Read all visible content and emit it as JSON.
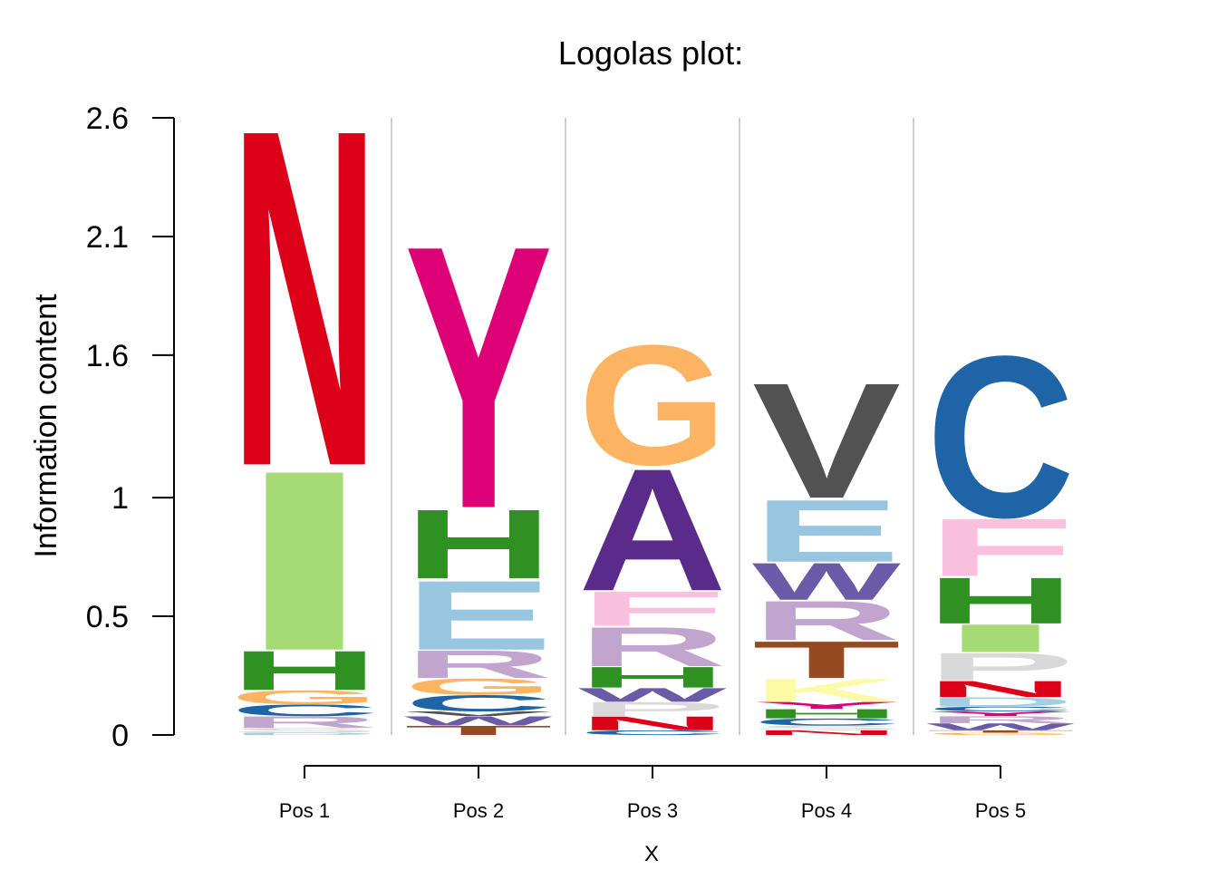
{
  "chart_data": {
    "type": "sequence-logo",
    "title": "Logolas plot:",
    "ylabel": "Information content",
    "xlabel": "X",
    "ylim": [
      0,
      2.6
    ],
    "yticks": [
      {
        "value": 0,
        "label": "0"
      },
      {
        "value": 0.5,
        "label": "0.5"
      },
      {
        "value": 1,
        "label": "1"
      },
      {
        "value": 1.6,
        "label": "1.6"
      },
      {
        "value": 2.1,
        "label": "2.1"
      },
      {
        "value": 2.6,
        "label": "2.6"
      }
    ],
    "positions": [
      {
        "label": "Pos 1",
        "letters": [
          {
            "letter": "D",
            "height": 0.01,
            "color": "#a6cee3"
          },
          {
            "letter": "S",
            "height": 0.02,
            "color": "#d9d9d9"
          },
          {
            "letter": "R",
            "height": 0.05,
            "color": "#c2a5cf"
          },
          {
            "letter": "C",
            "height": 0.05,
            "color": "#1f64a6"
          },
          {
            "letter": "G",
            "height": 0.06,
            "color": "#fdb462"
          },
          {
            "letter": "H",
            "height": 0.17,
            "color": "#2e9121"
          },
          {
            "letter": "I",
            "height": 0.78,
            "color": "#a6da75"
          },
          {
            "letter": "N",
            "height": 1.46,
            "color": "#dc0018"
          }
        ]
      },
      {
        "label": "Pos 2",
        "letters": [
          {
            "letter": "T",
            "height": 0.04,
            "color": "#964a22"
          },
          {
            "letter": "W",
            "height": 0.04,
            "color": "#6a5aa8"
          },
          {
            "letter": "V",
            "height": 0.02,
            "color": "#525252"
          },
          {
            "letter": "C",
            "height": 0.07,
            "color": "#1f64a6"
          },
          {
            "letter": "G",
            "height": 0.07,
            "color": "#fdb462"
          },
          {
            "letter": "R",
            "height": 0.12,
            "color": "#c2a5cf"
          },
          {
            "letter": "E",
            "height": 0.3,
            "color": "#98c5df"
          },
          {
            "letter": "H",
            "height": 0.3,
            "color": "#2e9121"
          },
          {
            "letter": "Y",
            "height": 1.14,
            "color": "#dd0076"
          }
        ]
      },
      {
        "label": "Pos 3",
        "letters": [
          {
            "letter": "C",
            "height": 0.02,
            "color": "#1f64a6"
          },
          {
            "letter": "N",
            "height": 0.06,
            "color": "#dc0018"
          },
          {
            "letter": "P",
            "height": 0.06,
            "color": "#d9d9d9"
          },
          {
            "letter": "W",
            "height": 0.06,
            "color": "#6a5aa8"
          },
          {
            "letter": "H",
            "height": 0.09,
            "color": "#2e9121"
          },
          {
            "letter": "R",
            "height": 0.17,
            "color": "#c2a5cf"
          },
          {
            "letter": "F",
            "height": 0.15,
            "color": "#f9c0de"
          },
          {
            "letter": "A",
            "height": 0.53,
            "color": "#5b2b8c"
          },
          {
            "letter": "G",
            "height": 0.52,
            "color": "#fdb462"
          }
        ]
      },
      {
        "label": "Pos 4",
        "letters": [
          {
            "letter": "N",
            "height": 0.02,
            "color": "#dc0018"
          },
          {
            "letter": "S",
            "height": 0.02,
            "color": "#d9d9d9"
          },
          {
            "letter": "C",
            "height": 0.03,
            "color": "#1f64a6"
          },
          {
            "letter": "H",
            "height": 0.04,
            "color": "#2e9121"
          },
          {
            "letter": "Y",
            "height": 0.03,
            "color": "#dd0076"
          },
          {
            "letter": "K",
            "height": 0.1,
            "color": "#fdfaa5"
          },
          {
            "letter": "T",
            "height": 0.16,
            "color": "#964a22"
          },
          {
            "letter": "R",
            "height": 0.17,
            "color": "#c2a5cf"
          },
          {
            "letter": "W",
            "height": 0.16,
            "color": "#6a5aa8"
          },
          {
            "letter": "E",
            "height": 0.27,
            "color": "#98c5df"
          },
          {
            "letter": "V",
            "height": 0.5,
            "color": "#525252"
          }
        ]
      },
      {
        "label": "Pos 5",
        "letters": [
          {
            "letter": "G",
            "height": 0.01,
            "color": "#fdb462"
          },
          {
            "letter": "T",
            "height": 0.01,
            "color": "#964a22"
          },
          {
            "letter": "W",
            "height": 0.03,
            "color": "#6a5aa8"
          },
          {
            "letter": "R",
            "height": 0.03,
            "color": "#c2a5cf"
          },
          {
            "letter": "Y",
            "height": 0.02,
            "color": "#dd0076"
          },
          {
            "letter": "C",
            "height": 0.02,
            "color": "#1f64a6"
          },
          {
            "letter": "D",
            "height": 0.04,
            "color": "#a6cee3"
          },
          {
            "letter": "N",
            "height": 0.07,
            "color": "#dc0018"
          },
          {
            "letter": "P",
            "height": 0.12,
            "color": "#d9d9d9"
          },
          {
            "letter": "I",
            "height": 0.12,
            "color": "#a6da75"
          },
          {
            "letter": "H",
            "height": 0.2,
            "color": "#2e9121"
          },
          {
            "letter": "F",
            "height": 0.25,
            "color": "#f9c0de"
          },
          {
            "letter": "C",
            "height": 0.7,
            "color": "#1f64a6"
          }
        ]
      }
    ]
  }
}
